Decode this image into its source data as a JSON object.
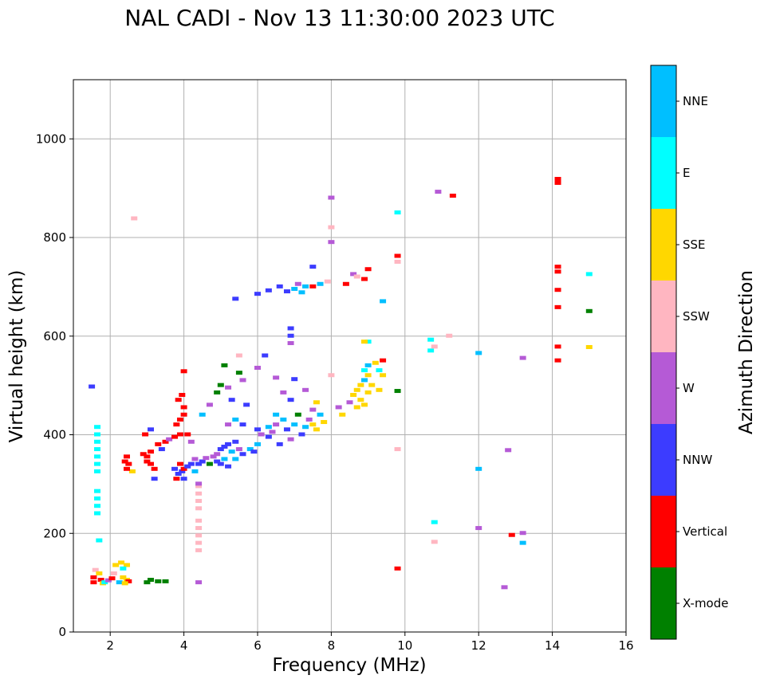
{
  "chart_data": {
    "type": "scatter",
    "title": "NAL CADI - Nov 13 11:30:00 2023 UTC",
    "xlabel": "Frequency (MHz)",
    "ylabel": "Virtual height (km)",
    "xlim": [
      1,
      16
    ],
    "ylim": [
      0,
      1120
    ],
    "xticks": [
      2,
      4,
      6,
      8,
      10,
      12,
      14,
      16
    ],
    "yticks": [
      0,
      200,
      400,
      600,
      800,
      1000
    ],
    "grid": true,
    "colorbar": {
      "label": "Azimuth Direction",
      "categories": [
        {
          "name": "X-mode",
          "color": "#008000"
        },
        {
          "name": "Vertical",
          "color": "#ff0000"
        },
        {
          "name": "NNW",
          "color": "#3c3cff"
        },
        {
          "name": "W",
          "color": "#b55ad6"
        },
        {
          "name": "SSW",
          "color": "#ffb6c1"
        },
        {
          "name": "SSE",
          "color": "#ffd700"
        },
        {
          "name": "E",
          "color": "#00ffff"
        },
        {
          "name": "NNE",
          "color": "#00bfff"
        }
      ]
    },
    "points": [
      [
        1.5,
        497,
        "NNW"
      ],
      [
        1.65,
        415,
        "E"
      ],
      [
        1.65,
        400,
        "E"
      ],
      [
        1.65,
        385,
        "E"
      ],
      [
        1.65,
        370,
        "E"
      ],
      [
        1.65,
        355,
        "E"
      ],
      [
        1.65,
        340,
        "E"
      ],
      [
        1.65,
        325,
        "E"
      ],
      [
        1.65,
        285,
        "E"
      ],
      [
        1.65,
        270,
        "E"
      ],
      [
        1.65,
        255,
        "E"
      ],
      [
        1.65,
        240,
        "E"
      ],
      [
        1.7,
        185,
        "E"
      ],
      [
        1.55,
        110,
        "Vertical"
      ],
      [
        1.55,
        100,
        "Vertical"
      ],
      [
        1.6,
        125,
        "SSW"
      ],
      [
        1.7,
        118,
        "SSE"
      ],
      [
        1.75,
        105,
        "Vertical"
      ],
      [
        1.8,
        98,
        "SSE"
      ],
      [
        1.85,
        100,
        "E"
      ],
      [
        1.95,
        104,
        "W"
      ],
      [
        2.05,
        108,
        "Vertical"
      ],
      [
        2.1,
        118,
        "SSW"
      ],
      [
        2.15,
        135,
        "SSE"
      ],
      [
        2.25,
        100,
        "NNE"
      ],
      [
        2.35,
        110,
        "SSE"
      ],
      [
        2.45,
        105,
        "SSE"
      ],
      [
        2.45,
        135,
        "SSE"
      ],
      [
        2.35,
        128,
        "E"
      ],
      [
        2.5,
        102,
        "Vertical"
      ],
      [
        2.3,
        140,
        "SSE"
      ],
      [
        2.4,
        98,
        "SSE"
      ],
      [
        3.0,
        100,
        "X-mode"
      ],
      [
        3.1,
        105,
        "X-mode"
      ],
      [
        3.3,
        102,
        "X-mode"
      ],
      [
        3.5,
        102,
        "X-mode"
      ],
      [
        4.4,
        100,
        "W"
      ],
      [
        2.4,
        345,
        "Vertical"
      ],
      [
        2.5,
        340,
        "Vertical"
      ],
      [
        2.45,
        355,
        "Vertical"
      ],
      [
        2.6,
        325,
        "SSE"
      ],
      [
        2.45,
        330,
        "Vertical"
      ],
      [
        2.9,
        360,
        "Vertical"
      ],
      [
        3.0,
        355,
        "Vertical"
      ],
      [
        3.1,
        365,
        "Vertical"
      ],
      [
        3.0,
        345,
        "Vertical"
      ],
      [
        3.1,
        340,
        "Vertical"
      ],
      [
        2.95,
        400,
        "Vertical"
      ],
      [
        3.1,
        410,
        "NNW"
      ],
      [
        3.2,
        330,
        "Vertical"
      ],
      [
        3.3,
        380,
        "Vertical"
      ],
      [
        3.4,
        370,
        "NNW"
      ],
      [
        3.5,
        385,
        "Vertical"
      ],
      [
        3.6,
        390,
        "W"
      ],
      [
        3.2,
        310,
        "NNW"
      ],
      [
        3.75,
        330,
        "NNW"
      ],
      [
        3.85,
        320,
        "NNW"
      ],
      [
        3.95,
        325,
        "NNW"
      ],
      [
        3.8,
        310,
        "Vertical"
      ],
      [
        3.9,
        340,
        "Vertical"
      ],
      [
        4.0,
        330,
        "Vertical"
      ],
      [
        4.0,
        310,
        "NNW"
      ],
      [
        3.8,
        420,
        "Vertical"
      ],
      [
        3.9,
        430,
        "Vertical"
      ],
      [
        4.0,
        440,
        "Vertical"
      ],
      [
        3.85,
        470,
        "Vertical"
      ],
      [
        3.95,
        480,
        "Vertical"
      ],
      [
        4.0,
        455,
        "Vertical"
      ],
      [
        3.9,
        400,
        "Vertical"
      ],
      [
        3.75,
        395,
        "Vertical"
      ],
      [
        4.0,
        528,
        "Vertical"
      ],
      [
        4.1,
        400,
        "Vertical"
      ],
      [
        4.2,
        385,
        "W"
      ],
      [
        4.3,
        350,
        "W"
      ],
      [
        4.1,
        335,
        "NNW"
      ],
      [
        4.2,
        340,
        "NNW"
      ],
      [
        4.3,
        325,
        "NNE"
      ],
      [
        4.4,
        340,
        "NNW"
      ],
      [
        4.5,
        345,
        "NNW"
      ],
      [
        4.6,
        352,
        "W"
      ],
      [
        4.7,
        340,
        "X-mode"
      ],
      [
        4.8,
        355,
        "W"
      ],
      [
        4.9,
        360,
        "W"
      ],
      [
        5.0,
        370,
        "NNW"
      ],
      [
        5.1,
        350,
        "NNE"
      ],
      [
        5.2,
        380,
        "NNW"
      ],
      [
        5.3,
        365,
        "NNE"
      ],
      [
        5.4,
        385,
        "NNW"
      ],
      [
        5.5,
        370,
        "W"
      ],
      [
        5.6,
        360,
        "NNW"
      ],
      [
        5.0,
        340,
        "NNW"
      ],
      [
        5.2,
        335,
        "NNW"
      ],
      [
        5.4,
        350,
        "NNE"
      ],
      [
        5.8,
        370,
        "NNE"
      ],
      [
        5.9,
        365,
        "NNW"
      ],
      [
        4.9,
        345,
        "NNW"
      ],
      [
        5.1,
        375,
        "NNW"
      ],
      [
        4.4,
        295,
        "SSW"
      ],
      [
        4.4,
        280,
        "SSW"
      ],
      [
        4.4,
        265,
        "SSW"
      ],
      [
        4.4,
        250,
        "SSW"
      ],
      [
        4.4,
        225,
        "SSW"
      ],
      [
        4.4,
        210,
        "SSW"
      ],
      [
        4.4,
        195,
        "SSW"
      ],
      [
        4.4,
        180,
        "SSW"
      ],
      [
        4.4,
        165,
        "SSW"
      ],
      [
        4.4,
        300,
        "W"
      ],
      [
        4.5,
        440,
        "NNE"
      ],
      [
        4.7,
        460,
        "W"
      ],
      [
        4.9,
        485,
        "X-mode"
      ],
      [
        5.0,
        500,
        "X-mode"
      ],
      [
        5.1,
        540,
        "X-mode"
      ],
      [
        5.2,
        495,
        "W"
      ],
      [
        5.3,
        470,
        "NNW"
      ],
      [
        5.5,
        525,
        "X-mode"
      ],
      [
        5.6,
        510,
        "W"
      ],
      [
        5.7,
        460,
        "NNW"
      ],
      [
        5.5,
        560,
        "SSW"
      ],
      [
        5.2,
        420,
        "W"
      ],
      [
        5.4,
        430,
        "NNE"
      ],
      [
        5.6,
        420,
        "NNW"
      ],
      [
        6.0,
        410,
        "NNW"
      ],
      [
        6.1,
        400,
        "W"
      ],
      [
        6.0,
        380,
        "NNE"
      ],
      [
        6.3,
        415,
        "NNE"
      ],
      [
        6.4,
        405,
        "W"
      ],
      [
        6.3,
        395,
        "NNW"
      ],
      [
        6.5,
        420,
        "W"
      ],
      [
        6.6,
        380,
        "NNW"
      ],
      [
        6.7,
        430,
        "NNE"
      ],
      [
        6.8,
        410,
        "NNW"
      ],
      [
        6.9,
        390,
        "W"
      ],
      [
        7.0,
        420,
        "NNE"
      ],
      [
        7.1,
        440,
        "X-mode"
      ],
      [
        7.2,
        400,
        "NNW"
      ],
      [
        7.3,
        415,
        "NNE"
      ],
      [
        7.4,
        430,
        "W"
      ],
      [
        7.5,
        420,
        "SSE"
      ],
      [
        7.6,
        410,
        "SSE"
      ],
      [
        7.7,
        440,
        "NNE"
      ],
      [
        7.5,
        450,
        "W"
      ],
      [
        7.3,
        490,
        "W"
      ],
      [
        7.6,
        465,
        "SSE"
      ],
      [
        7.8,
        425,
        "SSE"
      ],
      [
        6.5,
        440,
        "NNE"
      ],
      [
        6.7,
        485,
        "W"
      ],
      [
        6.9,
        470,
        "NNW"
      ],
      [
        6.2,
        560,
        "NNW"
      ],
      [
        6.5,
        515,
        "W"
      ],
      [
        7.0,
        512,
        "NNW"
      ],
      [
        6.0,
        535,
        "W"
      ],
      [
        5.4,
        675,
        "NNW"
      ],
      [
        6.0,
        685,
        "NNW"
      ],
      [
        6.3,
        692,
        "NNW"
      ],
      [
        6.6,
        700,
        "NNW"
      ],
      [
        6.8,
        690,
        "NNW"
      ],
      [
        7.0,
        695,
        "NNE"
      ],
      [
        7.1,
        705,
        "W"
      ],
      [
        7.2,
        688,
        "NNE"
      ],
      [
        7.3,
        700,
        "NNE"
      ],
      [
        7.5,
        700,
        "Vertical"
      ],
      [
        7.5,
        740,
        "NNW"
      ],
      [
        7.7,
        705,
        "NNE"
      ],
      [
        7.9,
        710,
        "SSW"
      ],
      [
        6.9,
        615,
        "NNW"
      ],
      [
        6.9,
        600,
        "NNW"
      ],
      [
        6.9,
        585,
        "W"
      ],
      [
        8.0,
        880,
        "W"
      ],
      [
        8.0,
        820,
        "SSW"
      ],
      [
        8.0,
        790,
        "W"
      ],
      [
        8.0,
        520,
        "SSW"
      ],
      [
        2.65,
        838,
        "SSW"
      ],
      [
        8.2,
        455,
        "W"
      ],
      [
        8.3,
        440,
        "SSE"
      ],
      [
        8.5,
        465,
        "W"
      ],
      [
        8.6,
        725,
        "W"
      ],
      [
        8.7,
        720,
        "SSW"
      ],
      [
        8.9,
        715,
        "Vertical"
      ],
      [
        9.0,
        735,
        "Vertical"
      ],
      [
        8.4,
        705,
        "Vertical"
      ],
      [
        8.6,
        480,
        "SSE"
      ],
      [
        8.7,
        490,
        "SSE"
      ],
      [
        8.8,
        500,
        "SSE"
      ],
      [
        8.9,
        510,
        "NNE"
      ],
      [
        9.0,
        520,
        "SSE"
      ],
      [
        8.8,
        470,
        "SSE"
      ],
      [
        8.9,
        460,
        "SSE"
      ],
      [
        9.0,
        485,
        "SSE"
      ],
      [
        8.7,
        455,
        "SSE"
      ],
      [
        9.1,
        500,
        "SSE"
      ],
      [
        8.9,
        530,
        "E"
      ],
      [
        9.0,
        540,
        "NNE"
      ],
      [
        9.2,
        545,
        "SSE"
      ],
      [
        9.3,
        530,
        "E"
      ],
      [
        9.4,
        550,
        "Vertical"
      ],
      [
        9.0,
        588,
        "E"
      ],
      [
        8.9,
        588,
        "SSE"
      ],
      [
        9.4,
        520,
        "SSE"
      ],
      [
        9.3,
        490,
        "SSE"
      ],
      [
        9.4,
        670,
        "NNE"
      ],
      [
        9.8,
        850,
        "E"
      ],
      [
        9.8,
        762,
        "Vertical"
      ],
      [
        9.8,
        750,
        "SSW"
      ],
      [
        9.8,
        488,
        "X-mode"
      ],
      [
        9.8,
        370,
        "SSW"
      ],
      [
        9.8,
        128,
        "Vertical"
      ],
      [
        10.7,
        592,
        "E"
      ],
      [
        10.7,
        570,
        "E"
      ],
      [
        10.8,
        578,
        "SSW"
      ],
      [
        10.9,
        892,
        "W"
      ],
      [
        11.2,
        600,
        "SSW"
      ],
      [
        11.3,
        884,
        "Vertical"
      ],
      [
        10.8,
        222,
        "E"
      ],
      [
        10.8,
        182,
        "SSW"
      ],
      [
        12.0,
        565,
        "NNE"
      ],
      [
        12.0,
        330,
        "NNE"
      ],
      [
        12.0,
        210,
        "W"
      ],
      [
        12.7,
        90,
        "W"
      ],
      [
        12.8,
        368,
        "W"
      ],
      [
        12.9,
        196,
        "Vertical"
      ],
      [
        13.2,
        555,
        "W"
      ],
      [
        13.2,
        200,
        "W"
      ],
      [
        13.2,
        180,
        "NNE"
      ],
      [
        14.15,
        918,
        "Vertical"
      ],
      [
        14.15,
        910,
        "Vertical"
      ],
      [
        14.15,
        740,
        "Vertical"
      ],
      [
        14.15,
        730,
        "Vertical"
      ],
      [
        14.15,
        693,
        "Vertical"
      ],
      [
        14.15,
        658,
        "Vertical"
      ],
      [
        14.15,
        578,
        "Vertical"
      ],
      [
        14.15,
        550,
        "Vertical"
      ],
      [
        15.0,
        725,
        "E"
      ],
      [
        15.0,
        650,
        "X-mode"
      ],
      [
        15.0,
        577,
        "SSE"
      ]
    ]
  }
}
